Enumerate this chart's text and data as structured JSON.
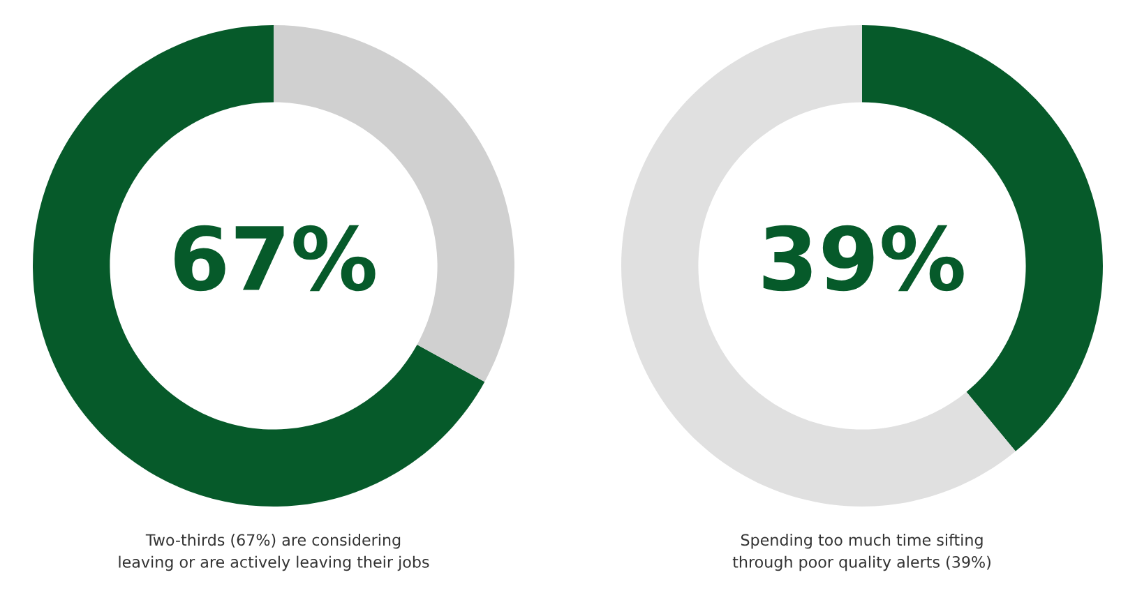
{
  "chart_data": [
    {
      "type": "donut",
      "categories": [
        null,
        null
      ],
      "values": [
        67,
        33
      ],
      "colors": [
        "#065a2a",
        "#d0d0d0"
      ],
      "value_labels": [
        "67%",
        null
      ],
      "title": "Two-thirds (67%) are considering\nleaving or are actively leaving their jobs"
    },
    {
      "type": "donut",
      "categories": [
        null,
        null
      ],
      "values": [
        39,
        61
      ],
      "colors": [
        "#065a2a",
        "#e0e0e0"
      ],
      "value_labels": [
        "39%",
        null
      ],
      "title": "Spending too much time sifting\nthrough poor quality alerts (39%)"
    }
  ]
}
